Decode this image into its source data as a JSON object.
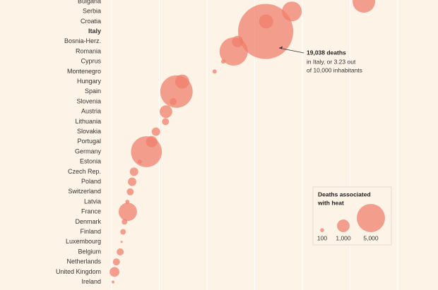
{
  "chart_data": {
    "type": "bubble",
    "categories": [
      "Bulgaria",
      "Serbia",
      "Croatia",
      "Italy",
      "Bosnia-Herz.",
      "Romania",
      "Cyprus",
      "Montenegro",
      "Hungary",
      "Spain",
      "Slovenia",
      "Austria",
      "Lithuania",
      "Slovakia",
      "Portugal",
      "Germany",
      "Estonia",
      "Czech Rep.",
      "Poland",
      "Switzerland",
      "Latvia",
      "France",
      "Denmark",
      "Finland",
      "Luxembourg",
      "Belgium",
      "Netherlands",
      "United Kingdom",
      "Ireland"
    ],
    "values": [
      5.29,
      3.78,
      3.24,
      3.23,
      2.64,
      2.56,
      2.34,
      2.16,
      1.48,
      1.36,
      1.29,
      1.14,
      1.13,
      0.93,
      0.84,
      0.73,
      0.59,
      0.47,
      0.43,
      0.39,
      0.33,
      0.34,
      0.27,
      0.24,
      0.21,
      0.18,
      0.1,
      0.06,
      0.03
    ],
    "sizes": [
      3200,
      2450,
      1250,
      19038,
      800,
      5000,
      110,
      110,
      1250,
      6600,
      310,
      1000,
      310,
      450,
      800,
      6000,
      110,
      450,
      450,
      310,
      110,
      2100,
      200,
      200,
      30,
      310,
      310,
      600,
      50
    ],
    "color": "#ee7d6a",
    "xlim": [
      0,
      6.8
    ],
    "xticks": [
      0,
      1,
      2,
      3,
      4,
      5,
      6
    ],
    "grid": true,
    "annotation": {
      "title": "19,038 deaths",
      "lines": [
        "in Italy, or 3.23 out",
        "of 10,000 inhabitants"
      ]
    },
    "legend": {
      "title": [
        "Deaths associated",
        "with heat"
      ],
      "sizes": [
        100,
        {
          "value": 1000,
          "label": "1,000"
        },
        {
          "value": 5000,
          "label": "5,000"
        }
      ]
    }
  }
}
